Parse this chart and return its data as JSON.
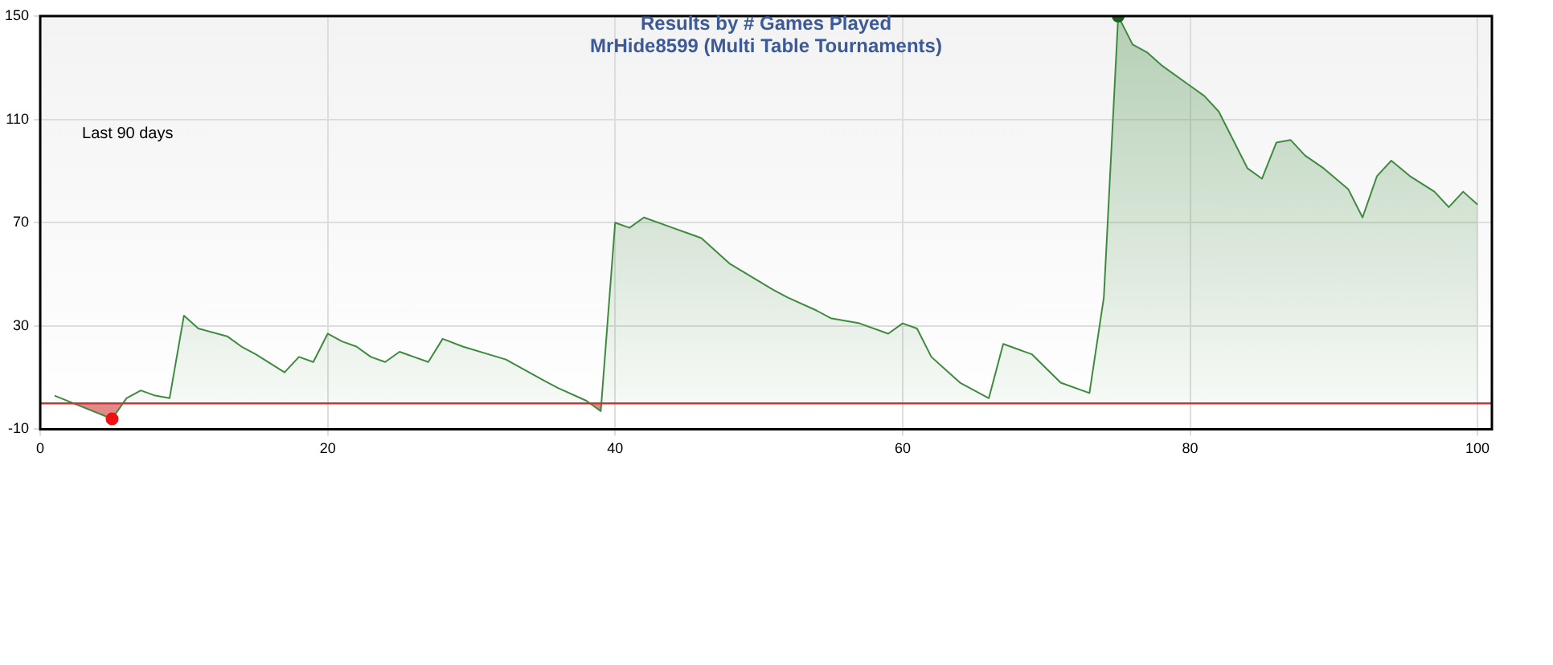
{
  "chart_data": {
    "type": "area",
    "title": "Results by # Games Played",
    "subtitle": "MrHide8599 (Multi Table Tournaments)",
    "annotations": [
      "Last 90 days"
    ],
    "xlim": [
      0,
      101
    ],
    "xticks": [
      0,
      20,
      40,
      60,
      80,
      100
    ],
    "ylim": [
      -10,
      150
    ],
    "yticks": [
      -10,
      30,
      70,
      110,
      150
    ],
    "grid": true,
    "legend": false,
    "marker": "none",
    "ref_lines": [
      {
        "axis": "y",
        "value": 0,
        "color": "#cc3333"
      }
    ],
    "series": [
      {
        "color": "#3f8a3f",
        "x": [
          1,
          5,
          6,
          7,
          8,
          9,
          10,
          11,
          13,
          14,
          15,
          17,
          18,
          19,
          20,
          21,
          22,
          23,
          24,
          25,
          26,
          27,
          28,
          29.4,
          32.4,
          35,
          36,
          38,
          39,
          40,
          41,
          42,
          44,
          45,
          46,
          48,
          51,
          52,
          54,
          55,
          57,
          59,
          60,
          61,
          62,
          63,
          64,
          66,
          67,
          69,
          71,
          73,
          74,
          75,
          76,
          77,
          78,
          80,
          81,
          82,
          84,
          85,
          86,
          87,
          88,
          89.3,
          91,
          92,
          93,
          94,
          95.3,
          97,
          98,
          99,
          100
        ],
        "values": [
          3,
          -6,
          2,
          5,
          3,
          2,
          34,
          29,
          26,
          22,
          19,
          12,
          18,
          16,
          27,
          24,
          22,
          18,
          16,
          20,
          18,
          16,
          25,
          22,
          17,
          9,
          6,
          1,
          -3,
          70,
          68,
          72,
          68,
          66,
          64,
          54,
          44,
          41,
          36,
          33,
          31,
          27,
          31,
          29,
          18,
          13,
          8,
          2,
          23,
          19,
          8,
          4,
          41,
          150,
          139,
          136,
          131,
          123,
          119,
          113,
          91,
          87,
          101,
          102,
          96,
          91,
          83,
          72,
          88,
          94,
          88,
          82,
          76,
          82,
          77
        ]
      },
      {
        "type": "scatter",
        "x": [
          5,
          75
        ],
        "values": [
          -6,
          150
        ],
        "colors": [
          "#ee1111",
          "#1f5f1f"
        ],
        "marker": "circle"
      }
    ]
  }
}
